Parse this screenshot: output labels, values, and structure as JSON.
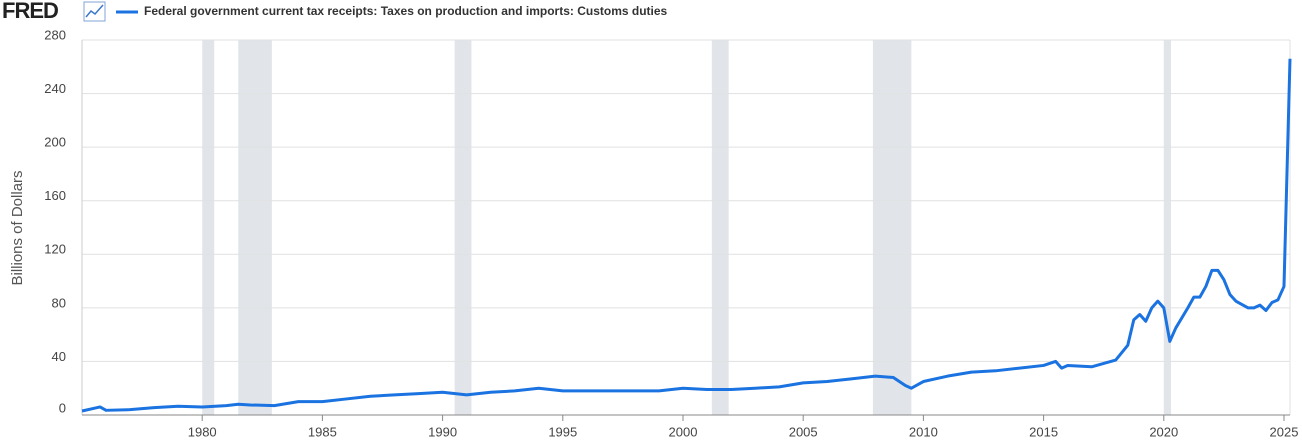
{
  "logo": "FRED",
  "chart_data": {
    "type": "line",
    "title": "Federal government current tax receipts: Taxes on production and imports: Customs duties",
    "y_label": "Billions of Dollars",
    "x": [
      1975,
      1975.5,
      1975.75,
      1976,
      1977,
      1978,
      1979,
      1980,
      1981,
      1981.5,
      1982,
      1983,
      1984,
      1985,
      1986,
      1987,
      1988,
      1989,
      1990,
      1991,
      1992,
      1993,
      1994,
      1995,
      1996,
      1997,
      1998,
      1999,
      2000,
      2001,
      2002,
      2003,
      2004,
      2005,
      2006,
      2007,
      2008,
      2008.75,
      2009.25,
      2009.5,
      2010,
      2011,
      2012,
      2013,
      2014,
      2015,
      2015.5,
      2015.75,
      2016,
      2017,
      2018,
      2018.5,
      2018.75,
      2019,
      2019.25,
      2019.5,
      2019.75,
      2020,
      2020.25,
      2020.5,
      2021,
      2021.25,
      2021.5,
      2021.75,
      2022,
      2022.25,
      2022.5,
      2022.75,
      2023,
      2023.5,
      2023.75,
      2024,
      2024.25,
      2024.5,
      2024.75,
      2025,
      2025.25
    ],
    "series": [
      {
        "name": "Federal government current tax receipts: Taxes on production and imports: Customs duties",
        "color": "#1a73e0",
        "values": [
          3,
          5,
          6,
          3.5,
          4,
          5.5,
          6.5,
          6,
          7,
          8,
          7.5,
          7,
          10,
          10,
          12,
          14,
          15,
          16,
          17,
          15,
          17,
          18,
          20,
          18,
          18,
          18,
          18,
          18,
          20,
          19,
          19,
          20,
          21,
          24,
          25,
          27,
          29,
          28,
          22,
          20,
          25,
          29,
          32,
          33,
          35,
          37,
          40,
          35,
          37,
          36,
          41,
          52,
          71,
          75,
          70,
          80,
          85,
          80,
          55,
          65,
          80,
          88,
          88,
          96,
          108,
          108,
          101,
          90,
          85,
          80,
          80,
          82,
          78,
          84,
          86,
          96,
          266
        ]
      }
    ],
    "recessions": [
      [
        1980,
        1980.5
      ],
      [
        1981.5,
        1982.9
      ],
      [
        1990.5,
        1991.2
      ],
      [
        2001.2,
        2001.9
      ],
      [
        2007.9,
        2009.5
      ],
      [
        2020,
        2020.3
      ]
    ],
    "xlim": [
      1975,
      2025.25
    ],
    "xticks": [
      1980,
      1985,
      1990,
      1995,
      2000,
      2005,
      2010,
      2015,
      2020,
      2025
    ],
    "ylim": [
      0,
      280
    ],
    "yticks": [
      0,
      40,
      80,
      120,
      160,
      200,
      240,
      280
    ],
    "grid": true
  }
}
